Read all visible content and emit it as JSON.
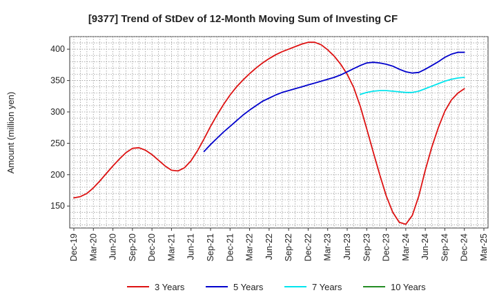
{
  "chart_data": {
    "type": "line",
    "title": "[9377]  Trend of StDev of 12-Month Moving Sum of Investing CF",
    "xlabel": "",
    "ylabel": "Amount (million yen)",
    "ylim": [
      115,
      420
    ],
    "y_ticks": [
      150,
      200,
      250,
      300,
      350,
      400
    ],
    "x_range": [
      "2019-12",
      "2025-03"
    ],
    "x_ticks": [
      {
        "date": "2019-12",
        "label": "Dec-19"
      },
      {
        "date": "2020-03",
        "label": "Mar-20"
      },
      {
        "date": "2020-06",
        "label": "Jun-20"
      },
      {
        "date": "2020-09",
        "label": "Sep-20"
      },
      {
        "date": "2020-12",
        "label": "Dec-20"
      },
      {
        "date": "2021-03",
        "label": "Mar-21"
      },
      {
        "date": "2021-06",
        "label": "Jun-21"
      },
      {
        "date": "2021-09",
        "label": "Sep-21"
      },
      {
        "date": "2021-12",
        "label": "Dec-21"
      },
      {
        "date": "2022-03",
        "label": "Mar-22"
      },
      {
        "date": "2022-06",
        "label": "Jun-22"
      },
      {
        "date": "2022-09",
        "label": "Sep-22"
      },
      {
        "date": "2022-12",
        "label": "Dec-22"
      },
      {
        "date": "2023-03",
        "label": "Mar-23"
      },
      {
        "date": "2023-06",
        "label": "Jun-23"
      },
      {
        "date": "2023-09",
        "label": "Sep-23"
      },
      {
        "date": "2023-12",
        "label": "Dec-23"
      },
      {
        "date": "2024-03",
        "label": "Mar-24"
      },
      {
        "date": "2024-06",
        "label": "Jun-24"
      },
      {
        "date": "2024-09",
        "label": "Sep-24"
      },
      {
        "date": "2024-12",
        "label": "Dec-24"
      },
      {
        "date": "2025-03",
        "label": "Mar-25"
      }
    ],
    "grid": true,
    "legend_position": "bottom",
    "series": [
      {
        "name": "3 Years",
        "color": "#dd1111",
        "points": [
          [
            "2019-12",
            163
          ],
          [
            "2020-01",
            165
          ],
          [
            "2020-02",
            170
          ],
          [
            "2020-03",
            179
          ],
          [
            "2020-04",
            190
          ],
          [
            "2020-05",
            202
          ],
          [
            "2020-06",
            214
          ],
          [
            "2020-07",
            225
          ],
          [
            "2020-08",
            235
          ],
          [
            "2020-09",
            242
          ],
          [
            "2020-10",
            243
          ],
          [
            "2020-11",
            239
          ],
          [
            "2020-12",
            232
          ],
          [
            "2021-01",
            223
          ],
          [
            "2021-02",
            214
          ],
          [
            "2021-03",
            207
          ],
          [
            "2021-04",
            206
          ],
          [
            "2021-05",
            211
          ],
          [
            "2021-06",
            222
          ],
          [
            "2021-07",
            238
          ],
          [
            "2021-08",
            257
          ],
          [
            "2021-09",
            277
          ],
          [
            "2021-10",
            295
          ],
          [
            "2021-11",
            312
          ],
          [
            "2021-12",
            327
          ],
          [
            "2022-01",
            340
          ],
          [
            "2022-02",
            351
          ],
          [
            "2022-03",
            361
          ],
          [
            "2022-04",
            370
          ],
          [
            "2022-05",
            378
          ],
          [
            "2022-06",
            385
          ],
          [
            "2022-07",
            391
          ],
          [
            "2022-08",
            396
          ],
          [
            "2022-09",
            400
          ],
          [
            "2022-10",
            404
          ],
          [
            "2022-11",
            408
          ],
          [
            "2022-12",
            411
          ],
          [
            "2023-01",
            411
          ],
          [
            "2023-02",
            407
          ],
          [
            "2023-03",
            399
          ],
          [
            "2023-04",
            389
          ],
          [
            "2023-05",
            376
          ],
          [
            "2023-06",
            360
          ],
          [
            "2023-07",
            339
          ],
          [
            "2023-08",
            309
          ],
          [
            "2023-09",
            273
          ],
          [
            "2023-10",
            236
          ],
          [
            "2023-11",
            200
          ],
          [
            "2023-12",
            166
          ],
          [
            "2024-01",
            140
          ],
          [
            "2024-02",
            124
          ],
          [
            "2024-03",
            121
          ],
          [
            "2024-04",
            135
          ],
          [
            "2024-05",
            166
          ],
          [
            "2024-06",
            207
          ],
          [
            "2024-07",
            244
          ],
          [
            "2024-08",
            275
          ],
          [
            "2024-09",
            301
          ],
          [
            "2024-10",
            319
          ],
          [
            "2024-11",
            330
          ],
          [
            "2024-12",
            337
          ]
        ]
      },
      {
        "name": "5 Years",
        "color": "#0000cc",
        "points": [
          [
            "2021-08",
            237
          ],
          [
            "2021-09",
            248
          ],
          [
            "2021-10",
            258
          ],
          [
            "2021-11",
            268
          ],
          [
            "2021-12",
            277
          ],
          [
            "2022-01",
            286
          ],
          [
            "2022-02",
            295
          ],
          [
            "2022-03",
            303
          ],
          [
            "2022-04",
            310
          ],
          [
            "2022-05",
            317
          ],
          [
            "2022-06",
            322
          ],
          [
            "2022-07",
            327
          ],
          [
            "2022-08",
            331
          ],
          [
            "2022-09",
            334
          ],
          [
            "2022-10",
            337
          ],
          [
            "2022-11",
            340
          ],
          [
            "2022-12",
            343
          ],
          [
            "2023-01",
            346
          ],
          [
            "2023-02",
            349
          ],
          [
            "2023-03",
            352
          ],
          [
            "2023-04",
            355
          ],
          [
            "2023-05",
            359
          ],
          [
            "2023-06",
            364
          ],
          [
            "2023-07",
            369
          ],
          [
            "2023-08",
            374
          ],
          [
            "2023-09",
            378
          ],
          [
            "2023-10",
            379
          ],
          [
            "2023-11",
            378
          ],
          [
            "2023-12",
            376
          ],
          [
            "2024-01",
            373
          ],
          [
            "2024-02",
            368
          ],
          [
            "2024-03",
            364
          ],
          [
            "2024-04",
            362
          ],
          [
            "2024-05",
            363
          ],
          [
            "2024-06",
            368
          ],
          [
            "2024-07",
            374
          ],
          [
            "2024-08",
            380
          ],
          [
            "2024-09",
            387
          ],
          [
            "2024-10",
            392
          ],
          [
            "2024-11",
            395
          ],
          [
            "2024-12",
            395
          ]
        ]
      },
      {
        "name": "7 Years",
        "color": "#00e5ee",
        "points": [
          [
            "2023-08",
            328
          ],
          [
            "2023-09",
            331
          ],
          [
            "2023-10",
            333
          ],
          [
            "2023-11",
            334
          ],
          [
            "2023-12",
            334
          ],
          [
            "2024-01",
            333
          ],
          [
            "2024-02",
            332
          ],
          [
            "2024-03",
            331
          ],
          [
            "2024-04",
            331
          ],
          [
            "2024-05",
            333
          ],
          [
            "2024-06",
            337
          ],
          [
            "2024-07",
            341
          ],
          [
            "2024-08",
            345
          ],
          [
            "2024-09",
            349
          ],
          [
            "2024-10",
            352
          ],
          [
            "2024-11",
            354
          ],
          [
            "2024-12",
            355
          ]
        ]
      },
      {
        "name": "10 Years",
        "color": "#228b22",
        "points": []
      }
    ]
  }
}
